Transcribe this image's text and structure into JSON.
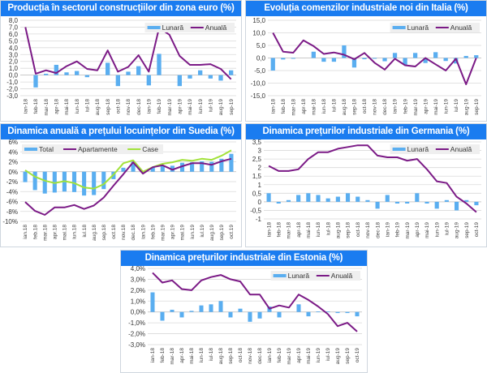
{
  "colors": {
    "title_bg": "#1a7cf0",
    "bar": "#5aaef0",
    "line_primary": "#7b1a86",
    "line_secondary": "#a2e23a",
    "grid": "#d9d9d9"
  },
  "chart_data": [
    {
      "id": "c1",
      "type": "bar+line",
      "title": "Producția în sectorul construcțiilor din zona euro (%)",
      "legend": [
        "Lunară",
        "Anuală"
      ],
      "legend_position": "top-right",
      "categories": [
        "ian-18",
        "feb-18",
        "mar-18",
        "apr-18",
        "mai-18",
        "iun-18",
        "iul-18",
        "aug-18",
        "sep-18",
        "oct-18",
        "nov-18",
        "dec-18",
        "ian-19",
        "feb-19",
        "mar-19",
        "apr-19",
        "mai-19",
        "iun-19",
        "iul-19",
        "aug-19",
        "sep-19"
      ],
      "yticks": [
        "8,0",
        "7,0",
        "6,0",
        "5,0",
        "4,0",
        "3,0",
        "2,0",
        "1,0",
        "0,0",
        "-1,0",
        "-2,0",
        "-3,0"
      ],
      "ylim": [
        -3,
        8
      ],
      "grid": true,
      "series": [
        {
          "name": "Lunară",
          "kind": "bar",
          "values": [
            0,
            -1.8,
            0.2,
            1.5,
            0.4,
            0.6,
            -0.3,
            0,
            1.8,
            -1.6,
            0.5,
            1.3,
            -1.5,
            3.1,
            0,
            -1.6,
            -0.5,
            0.7,
            -0.5,
            -0.8,
            0.7
          ]
        },
        {
          "name": "Anuală",
          "kind": "line",
          "values": [
            7.0,
            0.2,
            0.7,
            0.3,
            1.3,
            2.0,
            0.9,
            0.7,
            3.6,
            0.5,
            1.2,
            2.9,
            0.5,
            6.9,
            5.9,
            2.8,
            1.5,
            1.5,
            1.6,
            0.9,
            -0.6
          ]
        }
      ]
    },
    {
      "id": "c2",
      "type": "bar+line",
      "title": "Evoluția comenzilor industriale noi din Italia (%)",
      "legend": [
        "Lunară",
        "Anuală"
      ],
      "legend_position": "top-right",
      "categories": [
        "ian-18",
        "feb-18",
        "mar-18",
        "apr-18",
        "mai-18",
        "iun-18",
        "iul-18",
        "aug-18",
        "sep-18",
        "oct-18",
        "nov-18",
        "dec-18",
        "ian-19",
        "feb-19",
        "mar-19",
        "apr-19",
        "mai-19",
        "iun-19",
        "iul-19",
        "aug-19",
        "sep-19"
      ],
      "yticks": [
        "15,0",
        "10,0",
        "5,0",
        "0,0",
        "-5,0",
        "-10,0",
        "-15,0"
      ],
      "ylim": [
        -15,
        15
      ],
      "grid": true,
      "series": [
        {
          "name": "Lunară",
          "kind": "bar",
          "values": [
            -5.0,
            -0.6,
            -0.3,
            0,
            2.5,
            -1.5,
            -1.5,
            5.0,
            -3.8,
            -0.5,
            -0.3,
            -1.3,
            2.0,
            -2.8,
            2.0,
            -2.0,
            2.3,
            -1.2,
            -2.2,
            0.8,
            1.1
          ]
        },
        {
          "name": "Anuală",
          "kind": "line",
          "values": [
            10.0,
            2.5,
            2.1,
            7.0,
            4.7,
            1.6,
            2.2,
            1.3,
            -0.5,
            2.0,
            -1.9,
            -4.6,
            -0.3,
            -2.9,
            -3.4,
            0,
            -2.5,
            -5.0,
            -0.3,
            -10.5,
            0
          ]
        }
      ]
    },
    {
      "id": "c3",
      "type": "bar+line",
      "title": "Dinamica anuală a prețului locuințelor din Suedia (%)",
      "legend": [
        "Total",
        "Apartamente",
        "Case"
      ],
      "legend_position": "top-left",
      "categories": [
        "ian.18",
        "feb.18",
        "mar.18",
        "apr.18",
        "mai.18",
        "iun.18",
        "iul.18",
        "aug.18",
        "sep.18",
        "oct.18",
        "nov.18",
        "dec.18",
        "ian.19",
        "feb.19",
        "mar.19",
        "apr.19",
        "mai.19",
        "iun.19",
        "iul.19",
        "aug.19",
        "sep.19",
        "oct.19"
      ],
      "yticks": [
        "6%",
        "4%",
        "2%",
        "0%",
        "-2%",
        "-4%",
        "-6%",
        "-8%",
        "-10%"
      ],
      "ylim": [
        -10,
        6
      ],
      "grid": true,
      "series": [
        {
          "name": "Total",
          "kind": "bar",
          "values": [
            -2.1,
            -3.7,
            -4.4,
            -4.2,
            -4.0,
            -4.1,
            -4.8,
            -4.7,
            -3.5,
            -1.5,
            0.8,
            2.0,
            -0.2,
            0.9,
            1.2,
            1.2,
            1.8,
            1.9,
            2.1,
            2.0,
            2.6,
            3.6
          ]
        },
        {
          "name": "Apartamente",
          "kind": "line",
          "values": [
            -6.1,
            -7.9,
            -8.7,
            -7.2,
            -7.2,
            -6.7,
            -7.5,
            -6.8,
            -5.2,
            -2.8,
            -0.5,
            1.9,
            -0.4,
            0.9,
            1.3,
            0.4,
            1.1,
            1.7,
            1.7,
            1.4,
            2.1,
            2.6
          ]
        },
        {
          "name": "Case",
          "kind": "line",
          "values": [
            0.3,
            -1.0,
            -1.8,
            -2.3,
            -1.9,
            -2.3,
            -3.2,
            -3.4,
            -2.5,
            -0.6,
            1.7,
            2.3,
            0,
            0.9,
            1.6,
            1.9,
            2.4,
            2.2,
            2.6,
            2.4,
            3.2,
            4.3
          ]
        }
      ]
    },
    {
      "id": "c4",
      "type": "bar+line",
      "title": "Dinamica prețurilor industriale din Germania (%)",
      "legend": [
        "Lunară",
        "Anuală"
      ],
      "legend_position": "top-right",
      "categories": [
        "ian-18",
        "feb-18",
        "mar-18",
        "apr-18",
        "mai-18",
        "iun-18",
        "iul-18",
        "aug-18",
        "sep-18",
        "oct-18",
        "nov-18",
        "dec-18",
        "ian-19",
        "feb-19",
        "mar-19",
        "apr-19",
        "mai-19",
        "iun-19",
        "iul-19",
        "aug-19",
        "sep-19",
        "oct-19"
      ],
      "yticks": [
        "3,5",
        "3",
        "2,5",
        "2",
        "1,5",
        "1",
        "0,5",
        "0",
        "-0,5",
        "-1"
      ],
      "ylim": [
        -1,
        3.5
      ],
      "grid": true,
      "series": [
        {
          "name": "Lunară",
          "kind": "bar",
          "values": [
            0.5,
            -0.1,
            0.1,
            0.4,
            0.5,
            0.4,
            0.2,
            0.3,
            0.5,
            0.3,
            0.1,
            -0.4,
            0.4,
            -0.1,
            -0.1,
            0.5,
            -0.1,
            -0.4,
            0.1,
            -0.5,
            0.1,
            -0.2
          ]
        },
        {
          "name": "Anuală",
          "kind": "line",
          "values": [
            2.1,
            1.8,
            1.8,
            1.9,
            2.5,
            2.9,
            2.9,
            3.1,
            3.2,
            3.3,
            3.3,
            2.7,
            2.6,
            2.6,
            2.4,
            2.5,
            1.9,
            1.2,
            1.1,
            0.3,
            -0.1,
            -0.6
          ]
        }
      ]
    },
    {
      "id": "c5",
      "type": "bar+line",
      "title": "Dinamica prețurilor industriale din Estonia (%)",
      "legend": [
        "Lunară",
        "Anuală"
      ],
      "legend_position": "top-right",
      "categories": [
        "ian-18",
        "feb-18",
        "mar-18",
        "apr-18",
        "mai-18",
        "iun-18",
        "iul-18",
        "aug-18",
        "sep-18",
        "oct-18",
        "nov-18",
        "dec-18",
        "ian-19",
        "feb-19",
        "mar-19",
        "apr-19",
        "mai-19",
        "iun-19",
        "iul-19",
        "aug-19",
        "sep-19",
        "oct-19"
      ],
      "yticks": [
        "4,0%",
        "3,0%",
        "2,0%",
        "1,0%",
        "0,0%",
        "-1,0%",
        "-2,0%",
        "-3,0%"
      ],
      "ylim": [
        -3,
        4
      ],
      "grid": true,
      "series": [
        {
          "name": "Lunară",
          "kind": "bar",
          "values": [
            1.8,
            -0.8,
            0.2,
            -0.5,
            0.1,
            0.6,
            0.7,
            1.0,
            -0.5,
            0.3,
            -0.9,
            -0.6,
            0.5,
            -0.5,
            0,
            0.7,
            -0.4,
            0.05,
            0.05,
            -0.1,
            -0.1,
            -0.4
          ]
        },
        {
          "name": "Anuală",
          "kind": "line",
          "values": [
            3.6,
            2.7,
            2.9,
            2.1,
            2.0,
            2.9,
            3.2,
            3.4,
            3.0,
            2.8,
            1.6,
            1.6,
            0.3,
            0.6,
            0.4,
            1.6,
            1.1,
            0.5,
            -0.2,
            -1.3,
            -1.0,
            -1.8
          ]
        }
      ]
    }
  ]
}
